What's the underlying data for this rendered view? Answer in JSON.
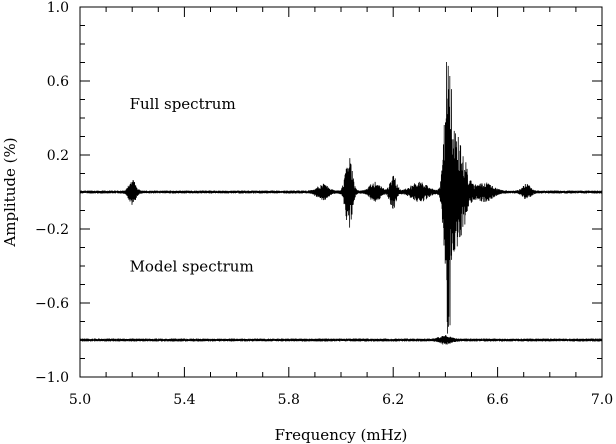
{
  "chart_data": {
    "type": "line",
    "title": "",
    "xlabel": "Frequency (mHz)",
    "ylabel": "Amplitude (%)",
    "xlim": [
      5.0,
      7.0
    ],
    "ylim": [
      -1.0,
      1.0
    ],
    "x_ticks": [
      5.0,
      5.4,
      5.8,
      6.2,
      6.6,
      7.0
    ],
    "x_tick_labels": [
      "5.0",
      "5.4",
      "5.8",
      "6.2",
      "6.6",
      "7.0"
    ],
    "x_minor_step": 0.1,
    "y_ticks": [
      -1.0,
      -0.6,
      -0.2,
      0.2,
      0.6,
      1.0
    ],
    "y_tick_labels": [
      "−1.0",
      "−0.6",
      "−0.2",
      "0.2",
      "0.6",
      "1.0"
    ],
    "y_minor_step": 0.1,
    "grid": false,
    "annotations": [
      {
        "text": "Full spectrum",
        "x": 5.19,
        "y": 0.45
      },
      {
        "text": "Model spectrum",
        "x": 5.19,
        "y": -0.43
      }
    ],
    "series": [
      {
        "baseline": 0.0,
        "noise": 0.008,
        "features": [
          {
            "center": 5.2,
            "amplitude": 0.07,
            "width": 0.012
          },
          {
            "center": 5.93,
            "amplitude": 0.04,
            "width": 0.02
          },
          {
            "center": 6.03,
            "amplitude": 0.2,
            "width": 0.012
          },
          {
            "center": 6.13,
            "amplitude": 0.05,
            "width": 0.02
          },
          {
            "center": 6.2,
            "amplitude": 0.09,
            "width": 0.012
          },
          {
            "center": 6.3,
            "amplitude": 0.05,
            "width": 0.03
          },
          {
            "center": 6.41,
            "amplitude": 0.75,
            "width": 0.012
          },
          {
            "center": 6.45,
            "amplitude": 0.3,
            "width": 0.025
          },
          {
            "center": 6.55,
            "amplitude": 0.05,
            "width": 0.03
          },
          {
            "center": 6.71,
            "amplitude": 0.04,
            "width": 0.015
          }
        ]
      },
      {
        "baseline": -0.8,
        "noise": 0.008,
        "features": [
          {
            "center": 6.4,
            "amplitude": 0.02,
            "width": 0.02
          }
        ]
      }
    ]
  }
}
